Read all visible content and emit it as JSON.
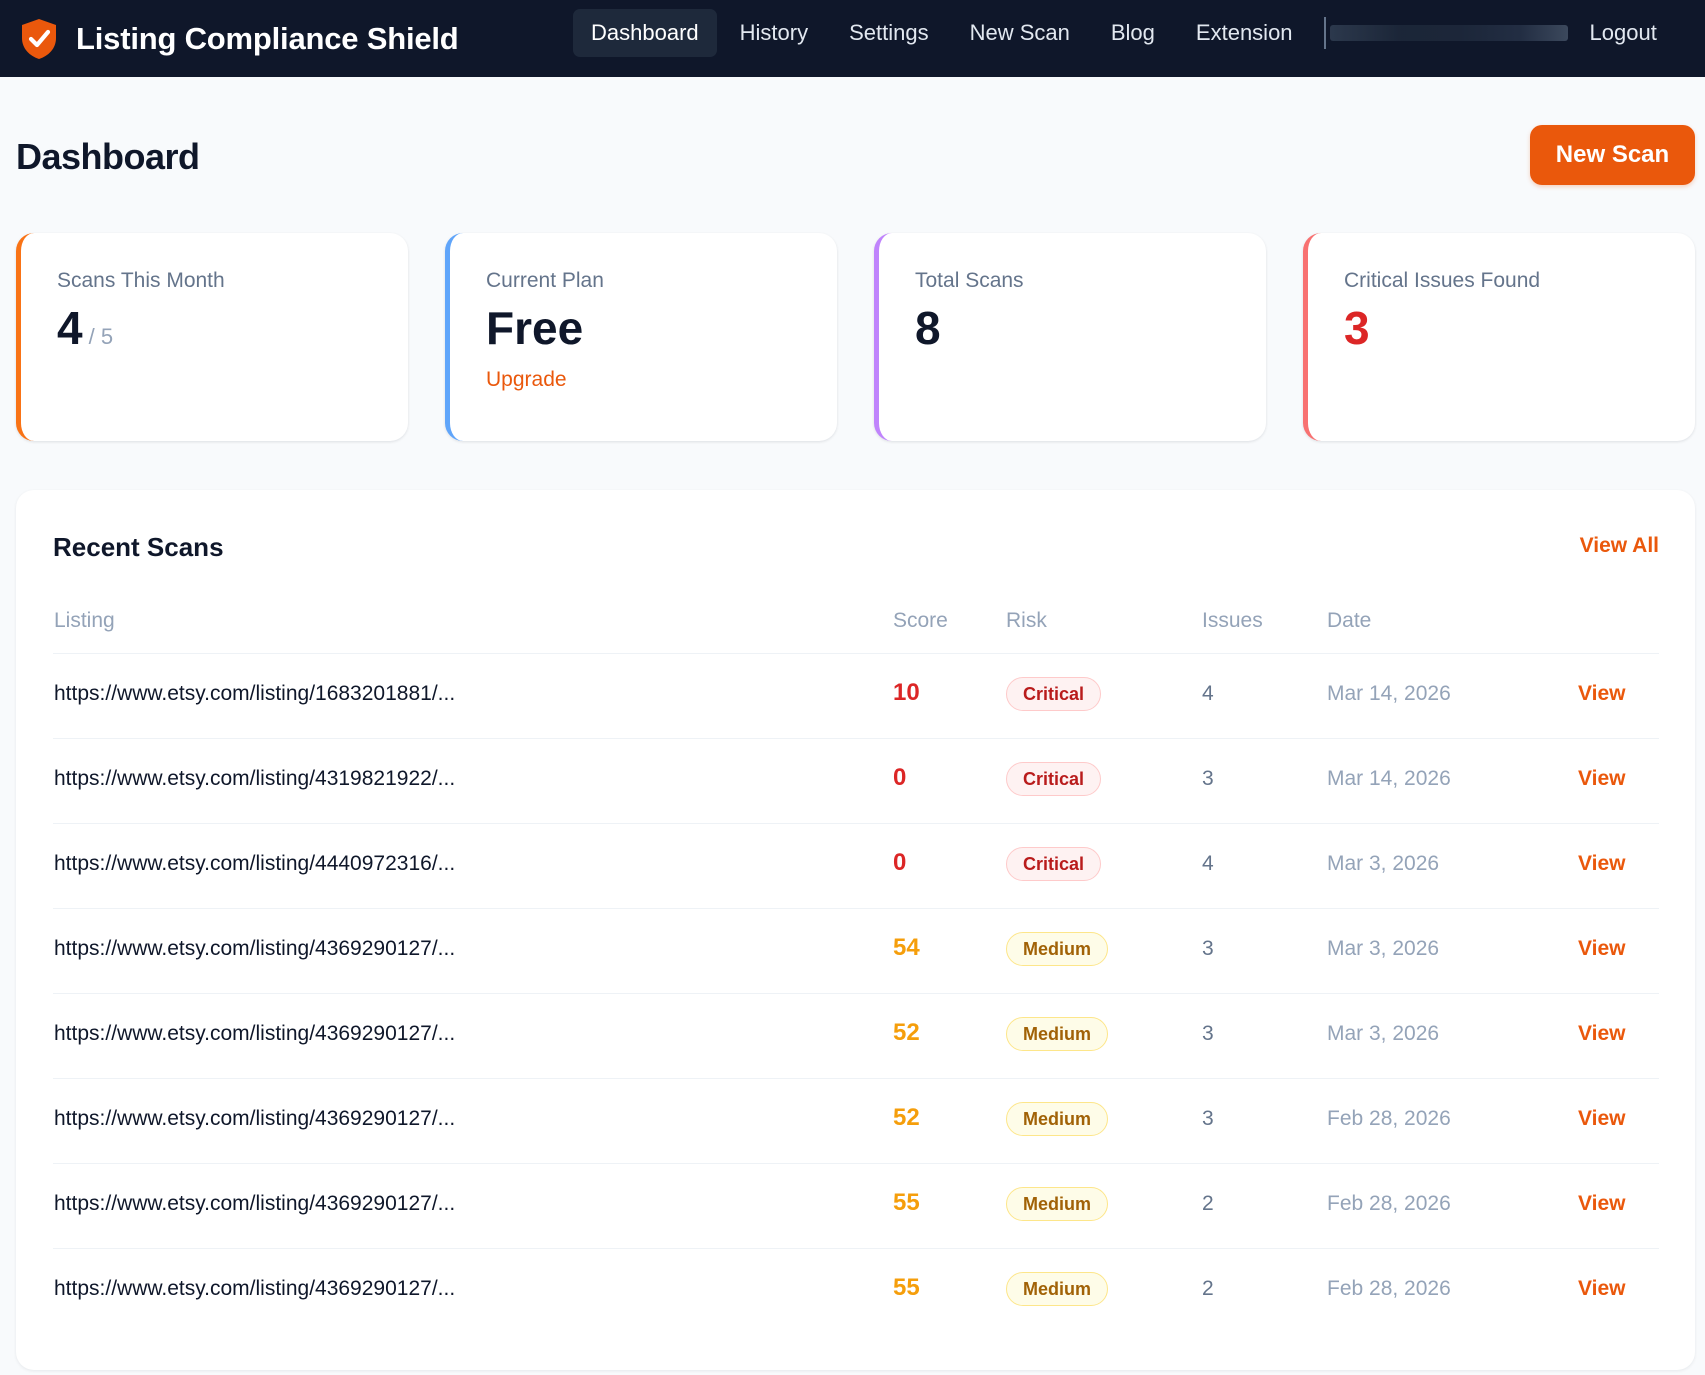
{
  "app": {
    "title": "Listing Compliance Shield"
  },
  "nav": {
    "items": [
      {
        "label": "Dashboard",
        "active": true
      },
      {
        "label": "History",
        "active": false
      },
      {
        "label": "Settings",
        "active": false
      },
      {
        "label": "New Scan",
        "active": false
      },
      {
        "label": "Blog",
        "active": false
      },
      {
        "label": "Extension",
        "active": false
      }
    ],
    "logout": "Logout"
  },
  "page": {
    "title": "Dashboard",
    "new_scan_label": "New Scan"
  },
  "stats": {
    "scans_month": {
      "label": "Scans This Month",
      "value": "4",
      "sub": "/ 5"
    },
    "plan": {
      "label": "Current Plan",
      "value": "Free",
      "link": "Upgrade"
    },
    "total": {
      "label": "Total Scans",
      "value": "8"
    },
    "critical": {
      "label": "Critical Issues Found",
      "value": "3"
    }
  },
  "recent": {
    "title": "Recent Scans",
    "view_all": "View All",
    "columns": {
      "listing": "Listing",
      "score": "Score",
      "risk": "Risk",
      "issues": "Issues",
      "date": "Date"
    },
    "rows": [
      {
        "url": "https://www.etsy.com/listing/1683201881/...",
        "score": "10",
        "risk": "Critical",
        "issues": "4",
        "date": "Mar 14, 2026",
        "action": "View"
      },
      {
        "url": "https://www.etsy.com/listing/4319821922/...",
        "score": "0",
        "risk": "Critical",
        "issues": "3",
        "date": "Mar 14, 2026",
        "action": "View"
      },
      {
        "url": "https://www.etsy.com/listing/4440972316/...",
        "score": "0",
        "risk": "Critical",
        "issues": "4",
        "date": "Mar 3, 2026",
        "action": "View"
      },
      {
        "url": "https://www.etsy.com/listing/4369290127/...",
        "score": "54",
        "risk": "Medium",
        "issues": "3",
        "date": "Mar 3, 2026",
        "action": "View"
      },
      {
        "url": "https://www.etsy.com/listing/4369290127/...",
        "score": "52",
        "risk": "Medium",
        "issues": "3",
        "date": "Mar 3, 2026",
        "action": "View"
      },
      {
        "url": "https://www.etsy.com/listing/4369290127/...",
        "score": "52",
        "risk": "Medium",
        "issues": "3",
        "date": "Feb 28, 2026",
        "action": "View"
      },
      {
        "url": "https://www.etsy.com/listing/4369290127/...",
        "score": "55",
        "risk": "Medium",
        "issues": "2",
        "date": "Feb 28, 2026",
        "action": "View"
      },
      {
        "url": "https://www.etsy.com/listing/4369290127/...",
        "score": "55",
        "risk": "Medium",
        "issues": "2",
        "date": "Feb 28, 2026",
        "action": "View"
      }
    ]
  },
  "colors": {
    "accent": "#ea580c",
    "nav_bg": "#0f172a",
    "card_scans": "#f97316",
    "card_plan": "#60a5fa",
    "card_total": "#c084fc",
    "card_critical": "#f87171",
    "critical": "#dc2626",
    "medium": "#f59e0b"
  },
  "icons": {
    "logo": "shield-check-icon"
  }
}
